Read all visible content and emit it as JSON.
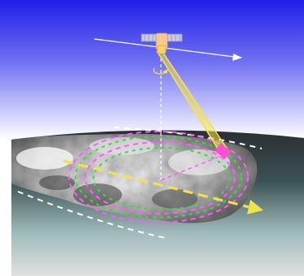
{
  "diagram": {
    "type": "satellite-conical-scan-illustration",
    "icons": [
      "satellite-icon",
      "earth-surface-icon",
      "cloud-layer-icon",
      "antenna-footprint-icon",
      "rotation-arrow-icon",
      "velocity-arrow-icon",
      "ground-track-arrow-icon"
    ],
    "colors": {
      "sky_top": "#1c1ce6",
      "sky_bottom": "#ffffff",
      "ground_top": "#2b3b38",
      "ground_bottom": "#e0e0e0",
      "scan_beam": "#f2e34b",
      "footprint_magenta": "#ff5bff",
      "footprint_green": "#44d44a",
      "track_arrow": "#f2e34b",
      "velocity_arrow": "#ffffff",
      "swath_edge": "#ffffff"
    }
  }
}
